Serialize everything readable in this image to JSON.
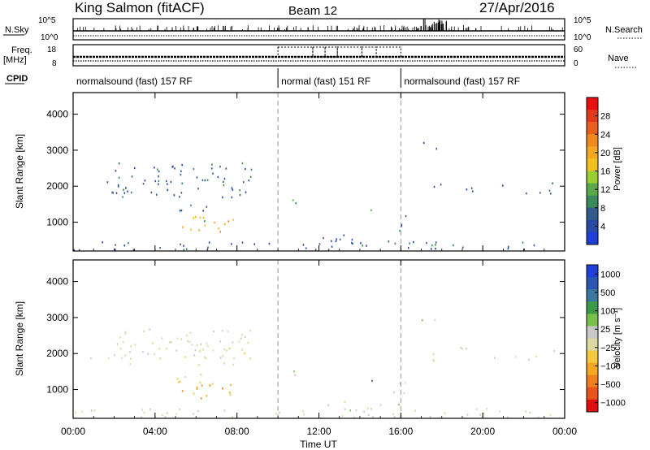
{
  "header": {
    "station": "King Salmon (fitACF)",
    "beam": "Beam 12",
    "date": "27/Apr/2016"
  },
  "aux_panels": {
    "nsky_label": "N.Sky",
    "nsky_ticks": [
      "10^5",
      "10^0"
    ],
    "nsearch_label": "N.Search",
    "freq_label_1": "Freq.",
    "freq_label_2": "[MHz]",
    "freq_ticks": [
      "18",
      "8"
    ],
    "nave_label": "Nave",
    "nave_ticks": [
      "60",
      "0"
    ],
    "cpid_label": "CPID",
    "modes": [
      {
        "label": "normalsound (fast) 157 RF",
        "start_hour": 0,
        "end_hour": 10
      },
      {
        "label": "normal (fast) 151 RF",
        "start_hour": 10,
        "end_hour": 16
      },
      {
        "label": "normalsound (fast) 157 RF",
        "start_hour": 16,
        "end_hour": 24
      }
    ]
  },
  "colors": {
    "power_scale": [
      "#1f3fd6",
      "#2a4aa8",
      "#335c8c",
      "#3a8a5a",
      "#5aa84a",
      "#9acd32",
      "#f0c020",
      "#f5a623",
      "#f08a20",
      "#e8601c",
      "#e03b1a",
      "#e81010"
    ],
    "velocity_scale": [
      "#1f3fd6",
      "#2b55b0",
      "#3a78a0",
      "#3a9a48",
      "#79c04a",
      "#c8c8c8",
      "#d8d8a0",
      "#f5c842",
      "#f5a623",
      "#f07d1f",
      "#e8541a",
      "#e01010"
    ]
  },
  "chart_data": [
    {
      "type": "heatmap",
      "panel": "power",
      "xlabel": "Time UT",
      "ylabel": "Slant Range [km]",
      "xlim": [
        0,
        24
      ],
      "ylim": [
        200,
        4600
      ],
      "xticks": [
        "00:00",
        "04:00",
        "08:00",
        "12:00",
        "16:00",
        "20:00",
        "00:00"
      ],
      "yticks": [
        1000,
        2000,
        3000,
        4000
      ],
      "colorbar_label": "Power [dB]",
      "colorbar_ticks": [
        "4",
        "8",
        "12",
        "16",
        "20",
        "24",
        "28"
      ],
      "colorbar_range": [
        0,
        30
      ],
      "mode_boundaries_hours": [
        10,
        16
      ],
      "clusters": [
        {
          "t0": 2.0,
          "t1": 8.8,
          "r0": 1700,
          "r1": 2700,
          "level": 6,
          "density": 0.45
        },
        {
          "t0": 0.7,
          "t1": 2.2,
          "r0": 1800,
          "r1": 2200,
          "level": 6,
          "density": 0.22
        },
        {
          "t0": 5.3,
          "t1": 7.8,
          "r0": 750,
          "r1": 1200,
          "level": 18,
          "density": 0.55
        },
        {
          "t0": 5.0,
          "t1": 6.5,
          "r0": 1050,
          "r1": 1500,
          "level": 5,
          "density": 0.4
        },
        {
          "t0": 10.6,
          "t1": 10.95,
          "r0": 1300,
          "r1": 1650,
          "level": 10,
          "density": 0.8
        },
        {
          "t0": 14.4,
          "t1": 14.75,
          "r0": 1150,
          "r1": 1450,
          "level": 8,
          "density": 0.6
        },
        {
          "t0": 15.5,
          "t1": 16.3,
          "r0": 700,
          "r1": 1250,
          "level": 6,
          "density": 0.45
        },
        {
          "t0": 17.0,
          "t1": 23.8,
          "r0": 1800,
          "r1": 2200,
          "level": 5,
          "density": 0.18
        },
        {
          "t0": 17.0,
          "t1": 17.8,
          "r0": 2400,
          "r1": 3300,
          "level": 5,
          "density": 0.14
        },
        {
          "t0": 0.0,
          "t1": 24.0,
          "r0": 250,
          "r1": 500,
          "level": 6,
          "density": 0.35
        },
        {
          "t0": 12.0,
          "t1": 16.0,
          "r0": 350,
          "r1": 700,
          "level": 4,
          "density": 0.3
        }
      ]
    },
    {
      "type": "heatmap",
      "panel": "velocity",
      "xlabel": "Time UT",
      "ylabel": "Slant Range [km]",
      "xlim": [
        0,
        24
      ],
      "ylim": [
        200,
        4600
      ],
      "xticks": [
        "00:00",
        "04:00",
        "08:00",
        "12:00",
        "16:00",
        "20:00",
        "00:00"
      ],
      "yticks": [
        1000,
        2000,
        3000,
        4000
      ],
      "colorbar_label": "Velocity [m s⁻¹]",
      "colorbar_ticks": [
        "1000",
        "500",
        "100",
        "25",
        "−25",
        "−100",
        "−500",
        "−1000"
      ],
      "colorbar_range": [
        -1200,
        1200
      ],
      "mode_boundaries_hours": [
        10,
        16
      ],
      "clusters": [
        {
          "t0": 2.0,
          "t1": 8.8,
          "r0": 1700,
          "r1": 2700,
          "level": -60,
          "density": 0.45
        },
        {
          "t0": 0.7,
          "t1": 2.2,
          "r0": 1800,
          "r1": 2200,
          "level": 0,
          "density": 0.22
        },
        {
          "t0": 5.3,
          "t1": 7.8,
          "r0": 750,
          "r1": 1200,
          "level": -450,
          "density": 0.55
        },
        {
          "t0": 5.0,
          "t1": 6.5,
          "r0": 1050,
          "r1": 1500,
          "level": -300,
          "density": 0.4
        },
        {
          "t0": 10.6,
          "t1": 10.95,
          "r0": 1300,
          "r1": 1650,
          "level": 150,
          "density": 0.8
        },
        {
          "t0": 14.4,
          "t1": 14.75,
          "r0": 1150,
          "r1": 1450,
          "level": 600,
          "density": 0.6
        },
        {
          "t0": 15.5,
          "t1": 16.3,
          "r0": 700,
          "r1": 1250,
          "level": 120,
          "density": 0.45
        },
        {
          "t0": 17.0,
          "t1": 23.8,
          "r0": 1800,
          "r1": 2200,
          "level": 0,
          "density": 0.18
        },
        {
          "t0": 17.0,
          "t1": 17.8,
          "r0": 2400,
          "r1": 3300,
          "level": 100,
          "density": 0.14
        },
        {
          "t0": 0.0,
          "t1": 24.0,
          "r0": 250,
          "r1": 500,
          "level": -20,
          "density": 0.35
        },
        {
          "t0": 12.0,
          "t1": 16.0,
          "r0": 350,
          "r1": 700,
          "level": 100,
          "density": 0.3
        }
      ]
    }
  ]
}
